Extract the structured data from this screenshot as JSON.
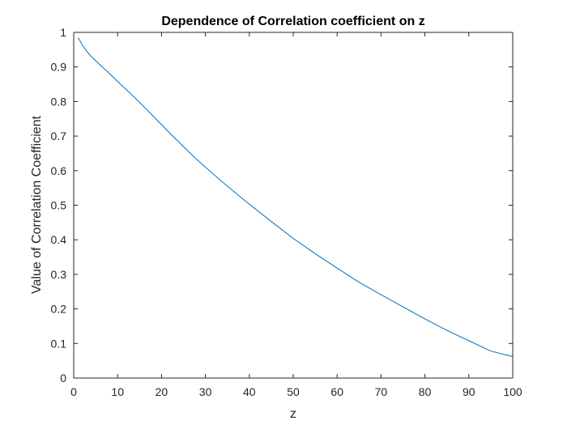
{
  "chart_data": {
    "type": "line",
    "title": "Dependence of Correlation coefficient on z",
    "xlabel": "z",
    "ylabel": "Value of Correlation Coefficient",
    "xlim": [
      0,
      100
    ],
    "ylim": [
      0,
      1
    ],
    "xticks": [
      "0",
      "10",
      "20",
      "30",
      "40",
      "50",
      "60",
      "70",
      "80",
      "90",
      "100"
    ],
    "yticks": [
      "0",
      "0.1",
      "0.2",
      "0.3",
      "0.4",
      "0.5",
      "0.6",
      "0.7",
      "0.8",
      "0.9",
      "1"
    ],
    "grid": false,
    "box": true,
    "series": [
      {
        "color": "#0072BD",
        "x": [
          1,
          2,
          3,
          4,
          5,
          6,
          8,
          10,
          12,
          14,
          16,
          18,
          20,
          22,
          24,
          26,
          28,
          30,
          35,
          40,
          45,
          50,
          55,
          60,
          65,
          70,
          75,
          80,
          85,
          90,
          95,
          100
        ],
        "y": [
          0.985,
          0.963,
          0.945,
          0.93,
          0.918,
          0.906,
          0.883,
          0.858,
          0.834,
          0.81,
          0.785,
          0.759,
          0.733,
          0.707,
          0.682,
          0.657,
          0.633,
          0.61,
          0.555,
          0.503,
          0.453,
          0.404,
          0.36,
          0.318,
          0.277,
          0.241,
          0.206,
          0.171,
          0.138,
          0.108,
          0.078,
          0.062
        ]
      }
    ]
  }
}
